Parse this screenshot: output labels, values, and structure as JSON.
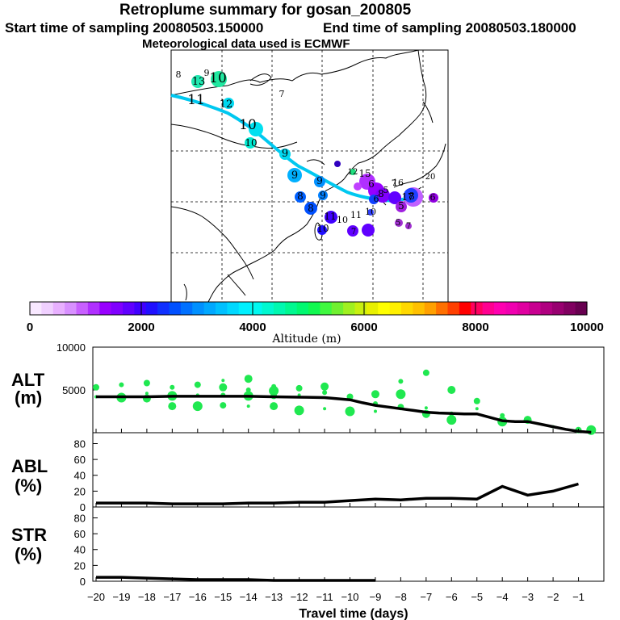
{
  "header": {
    "title": "Retroplume summary for gosan_200805",
    "start_label": "Start time of sampling 20080503.150000",
    "end_label": "End time of sampling 20080503.180000",
    "met_label": "Meteorological data used is ECMWF"
  },
  "colorbar": {
    "label": "Altitude (m)",
    "tick_labels": [
      "0",
      "2000",
      "4000",
      "6000",
      "8000",
      "10000"
    ],
    "colors": [
      "#f8e8ff",
      "#f0d0ff",
      "#e8b0ff",
      "#d890ff",
      "#c860ff",
      "#b030ff",
      "#9800ff",
      "#8000ff",
      "#6000ff",
      "#4000ff",
      "#2010ff",
      "#1030ff",
      "#0050ff",
      "#0070ff",
      "#0090ff",
      "#00a8ff",
      "#00c0ff",
      "#00d8ff",
      "#00f0ff",
      "#00f8f0",
      "#00f8d0",
      "#00f8b0",
      "#00f890",
      "#00f870",
      "#10f850",
      "#40f840",
      "#70f030",
      "#a0f020",
      "#c8f010",
      "#e8f000",
      "#ffff00",
      "#fff000",
      "#ffd800",
      "#ffc000",
      "#ffa000",
      "#ff7000",
      "#ff4000",
      "#ff0000",
      "#ff0060",
      "#ff0090",
      "#ff00b0",
      "#f000b0",
      "#e000a0",
      "#c80090",
      "#b00080",
      "#980070",
      "#800060",
      "#680050"
    ]
  },
  "map": {
    "labels": [
      "8",
      "13",
      "9",
      "10",
      "11",
      "12",
      "7",
      "10",
      "10",
      "9",
      "9",
      "9",
      "8",
      "9",
      "8",
      "11",
      "8",
      "10",
      "11",
      "10",
      "12",
      "15",
      "16",
      "17",
      "8",
      "6",
      "6",
      "7",
      "5",
      "10",
      "20",
      "7",
      "5",
      "5",
      "6",
      "7"
    ]
  },
  "chart_data": [
    {
      "type": "line",
      "name": "ALT",
      "title": "Retroplume summary for gosan_200805",
      "ylabel": "ALT (m)",
      "xlabel": "Travel time (days)",
      "x": [
        -20,
        -19,
        -18,
        -17,
        -16,
        -15,
        -14,
        -13,
        -12,
        -11,
        -10,
        -9.5,
        -9,
        -8.5,
        -8,
        -7.5,
        -7,
        -6.5,
        -6,
        -5.5,
        -5,
        -4.5,
        -4,
        -3.5,
        -3,
        -2.5,
        -2,
        -1.5,
        -1,
        -0.5
      ],
      "series": [
        {
          "name": "median altitude",
          "values": [
            4200,
            4200,
            4200,
            4250,
            4250,
            4250,
            4250,
            4200,
            4150,
            4100,
            3850,
            3500,
            3200,
            3000,
            2800,
            2600,
            2400,
            2300,
            2250,
            2200,
            2200,
            1800,
            1400,
            1300,
            1300,
            1000,
            700,
            400,
            150,
            50
          ]
        }
      ],
      "ylim": [
        0,
        10000
      ],
      "y_tick_labels": [
        "10000",
        "5000"
      ],
      "scatter_points": [
        {
          "x": -20,
          "y": 4200
        },
        {
          "x": -20,
          "y": 5300
        },
        {
          "x": -19,
          "y": 4100
        },
        {
          "x": -19,
          "y": 5600
        },
        {
          "x": -18,
          "y": 4000
        },
        {
          "x": -18,
          "y": 4600
        },
        {
          "x": -18,
          "y": 5800
        },
        {
          "x": -17,
          "y": 4300
        },
        {
          "x": -17,
          "y": 5300
        },
        {
          "x": -17,
          "y": 3100
        },
        {
          "x": -16,
          "y": 4400
        },
        {
          "x": -16,
          "y": 5600
        },
        {
          "x": -16,
          "y": 3100
        },
        {
          "x": -15,
          "y": 4400
        },
        {
          "x": -15,
          "y": 5300
        },
        {
          "x": -15,
          "y": 6100
        },
        {
          "x": -15,
          "y": 3200
        },
        {
          "x": -14,
          "y": 4300
        },
        {
          "x": -14,
          "y": 5000
        },
        {
          "x": -14,
          "y": 6300
        },
        {
          "x": -14,
          "y": 3100
        },
        {
          "x": -13,
          "y": 4300
        },
        {
          "x": -13,
          "y": 4900
        },
        {
          "x": -13,
          "y": 5400
        },
        {
          "x": -13,
          "y": 3100
        },
        {
          "x": -12,
          "y": 4400
        },
        {
          "x": -12,
          "y": 5200
        },
        {
          "x": -12,
          "y": 2600
        },
        {
          "x": -11,
          "y": 4700
        },
        {
          "x": -11,
          "y": 5400
        },
        {
          "x": -11,
          "y": 2800
        },
        {
          "x": -10,
          "y": 4200
        },
        {
          "x": -10,
          "y": 2500
        },
        {
          "x": -9,
          "y": 3400
        },
        {
          "x": -9,
          "y": 4500
        },
        {
          "x": -9,
          "y": 2500
        },
        {
          "x": -8,
          "y": 3000
        },
        {
          "x": -8,
          "y": 4500
        },
        {
          "x": -8,
          "y": 6000
        },
        {
          "x": -7,
          "y": 2200
        },
        {
          "x": -7,
          "y": 2900
        },
        {
          "x": -7,
          "y": 7000
        },
        {
          "x": -6,
          "y": 1500
        },
        {
          "x": -6,
          "y": 2200
        },
        {
          "x": -6,
          "y": 5000
        },
        {
          "x": -5,
          "y": 2800
        },
        {
          "x": -5,
          "y": 3700
        },
        {
          "x": -4,
          "y": 1300
        },
        {
          "x": -4,
          "y": 2000
        },
        {
          "x": -3,
          "y": 1500
        },
        {
          "x": -2,
          "y": 700
        },
        {
          "x": -1,
          "y": 300
        },
        {
          "x": -0.5,
          "y": 300
        }
      ]
    },
    {
      "type": "line",
      "name": "ABL",
      "ylabel": "ABL (%)",
      "xlabel": "Travel time (days)",
      "x": [
        -20,
        -19,
        -18,
        -17,
        -16,
        -15,
        -14,
        -13,
        -12,
        -11,
        -10,
        -9,
        -8,
        -7,
        -6,
        -5,
        -4,
        -3,
        -2,
        -1
      ],
      "series": [
        {
          "name": "fraction in ABL",
          "values": [
            5,
            5,
            5,
            4,
            4,
            4,
            5,
            5,
            6,
            6,
            8,
            10,
            9,
            11,
            11,
            10,
            26,
            15,
            20,
            29
          ]
        }
      ],
      "ylim": [
        0,
        90
      ],
      "y_tick_labels": [
        "80",
        "60",
        "40",
        "20",
        "0"
      ]
    },
    {
      "type": "line",
      "name": "STR",
      "ylabel": "STR (%)",
      "xlabel": "Travel time (days)",
      "x": [
        -20,
        -19,
        -18,
        -17,
        -16,
        -15,
        -14,
        -13,
        -12,
        -11,
        -10,
        -9
      ],
      "series": [
        {
          "name": "fraction in stratosphere",
          "values": [
            5,
            5,
            4,
            3,
            2,
            2,
            2,
            1,
            1,
            1,
            1,
            1
          ]
        }
      ],
      "ylim": [
        0,
        90
      ],
      "y_tick_labels": [
        "80",
        "60",
        "40",
        "20",
        "0"
      ]
    }
  ],
  "panels": {
    "alt_label_1": "ALT",
    "alt_label_2": "(m)",
    "abl_label_1": "ABL",
    "abl_label_2": "(%)",
    "str_label_1": "STR",
    "str_label_2": "(%)",
    "x_tick_labels": [
      "−20",
      "−19",
      "−18",
      "−17",
      "−16",
      "−15",
      "−14",
      "−13",
      "−12",
      "−11",
      "−10",
      "−9",
      "−8",
      "−7",
      "−6",
      "−5",
      "−4",
      "−3",
      "−2",
      "−1"
    ],
    "xlabel": "Travel time (days)"
  }
}
